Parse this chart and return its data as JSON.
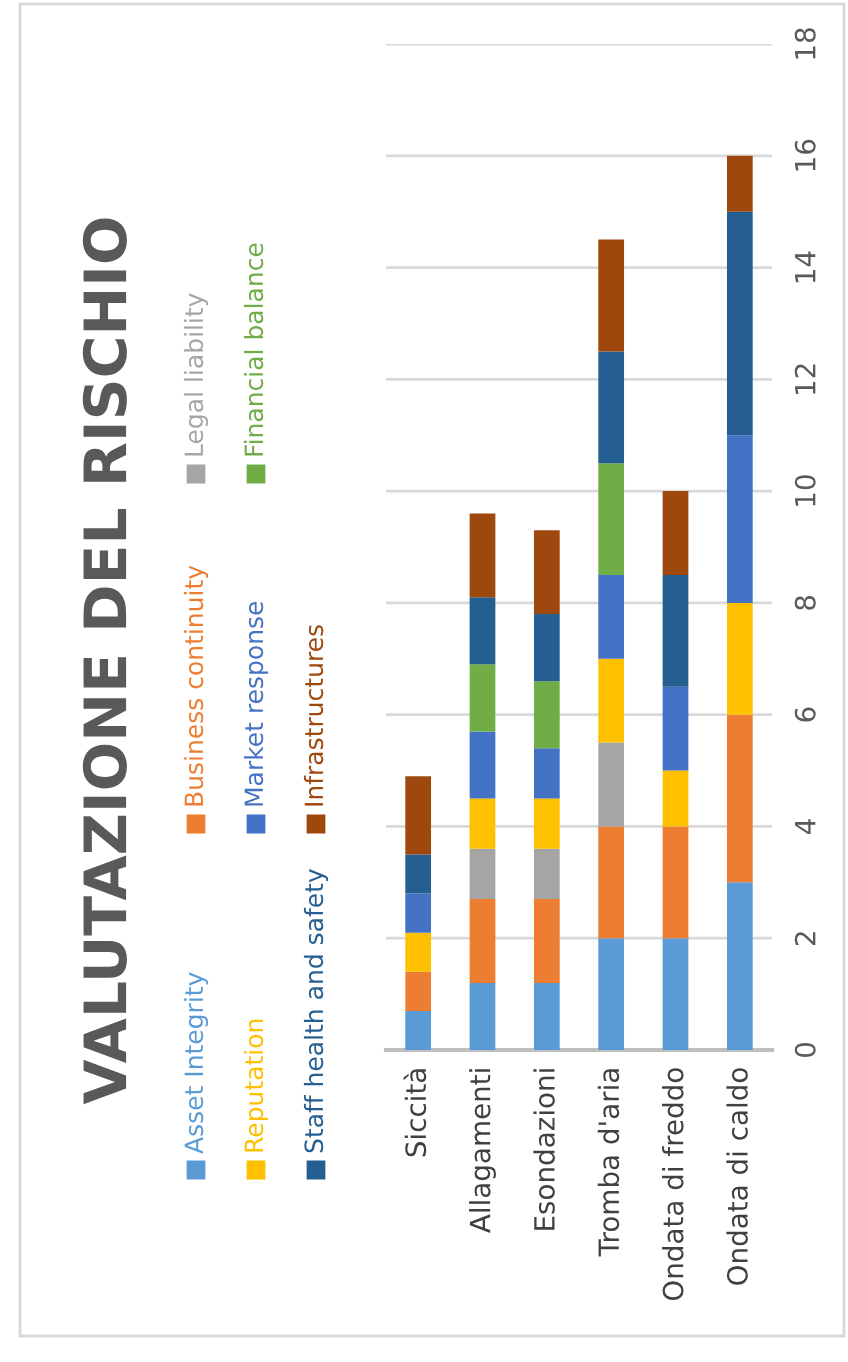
{
  "chart_data": {
    "type": "bar",
    "stacked": true,
    "title": "VALUTAZIONE DEL RISCHIO",
    "categories": [
      "Siccità",
      "Allagamenti",
      "Esondazioni",
      "Tromba d'aria",
      "Ondata di freddo",
      "Ondata di caldo"
    ],
    "series": [
      {
        "name": "Asset Integrity",
        "color": "#5b9bd5",
        "values": [
          0.7,
          1.2,
          1.2,
          2,
          2,
          3
        ]
      },
      {
        "name": "Business continuity",
        "color": "#ed7d31",
        "values": [
          0.7,
          1.5,
          1.5,
          2,
          2,
          3
        ]
      },
      {
        "name": "Legal liability",
        "color": "#a5a5a5",
        "values": [
          0,
          0.9,
          0.9,
          1.5,
          0,
          0
        ]
      },
      {
        "name": "Reputation",
        "color": "#ffc000",
        "values": [
          0.7,
          0.9,
          0.9,
          1.5,
          1,
          2
        ]
      },
      {
        "name": "Market response",
        "color": "#4472c4",
        "values": [
          0.7,
          1.2,
          0.9,
          1.5,
          1.5,
          3
        ]
      },
      {
        "name": "Financial balance",
        "color": "#70ad47",
        "values": [
          0,
          1.2,
          1.2,
          2,
          0,
          0
        ]
      },
      {
        "name": "Staff health and safety",
        "color": "#255e91",
        "values": [
          0.7,
          1.2,
          1.2,
          2,
          2,
          4
        ]
      },
      {
        "name": "Infrastructures",
        "color": "#9e480e",
        "values": [
          1.4,
          1.5,
          1.5,
          2,
          1.5,
          1
        ]
      }
    ],
    "ylim": [
      0,
      18
    ],
    "yticks": [
      0,
      2,
      4,
      6,
      8,
      10,
      12,
      14,
      16,
      18
    ],
    "grid": "y",
    "legend": "left"
  }
}
